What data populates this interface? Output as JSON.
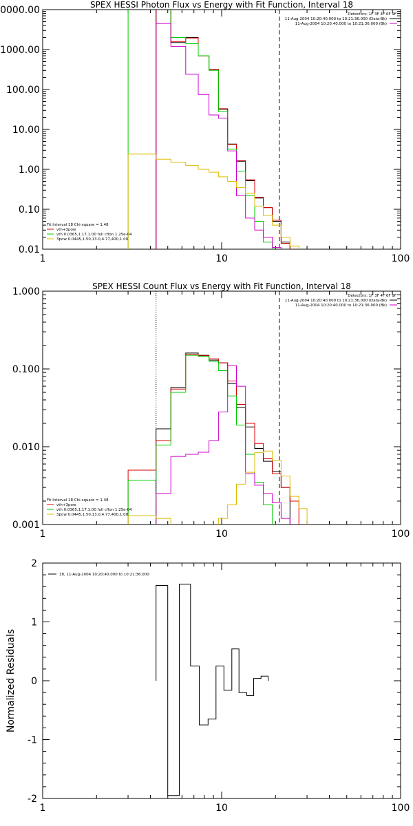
{
  "chart_data": [
    {
      "type": "line",
      "title": "SPEX HESSI Photon Flux vs Energy with Fit Function, Interval 18",
      "xlabel": "",
      "ylabel": "",
      "xscale": "log",
      "yscale": "log",
      "xlim": [
        1,
        100
      ],
      "ylim": [
        0.01,
        10000
      ],
      "xticks": [
        "1",
        "10",
        "100"
      ],
      "yticks": [
        "0.01",
        "0.10",
        "1.00",
        "10.00",
        "100.00",
        "1000.00",
        "10000.00"
      ],
      "detectors_label": "Detectors: 1F 3F 4F 6F 9F",
      "time_labels": [
        {
          "text": "11-Aug-2004 10:20:40.000 to 10:21:36.000 (Data-Bk)",
          "color": "#000000"
        },
        {
          "text": "11-Aug-2004 10:20:40.000 to 10:21:36.000 (Bk)",
          "color": "#cc00cc"
        }
      ],
      "legend_lines": [
        {
          "text": "Fit Interval 18   Chi-square = 1.48",
          "color": "#000000"
        },
        {
          "text": "vth+3pow",
          "color": "#dd0000"
        },
        {
          "text": "vth 0.0365,1.17,1.00  full cflon 1.25e-04",
          "color": "#00cc00"
        },
        {
          "text": "3pow 0.0445,1.50,13.0,4.77,400,1.00",
          "color": "#ddbb00"
        }
      ],
      "vlines": [
        {
          "x": 4.3,
          "style": "solid",
          "color": "#cc00cc"
        },
        {
          "x": 21,
          "style": "dashed",
          "color": "#000000"
        }
      ],
      "edges": [
        3,
        4.3,
        5.2,
        6.3,
        7.4,
        8.5,
        9.6,
        10.8,
        12.1,
        13.6,
        15.3,
        17.1,
        19.2,
        21.5,
        24.1,
        27.0,
        30.0
      ],
      "series": [
        {
          "name": "Data-Bk",
          "color": "#000000",
          "values": [
            null,
            10000,
            1500,
            2000,
            700,
            320,
            32,
            4.3,
            1.6,
            0.52,
            0.19,
            0.11,
            0.05,
            0.015,
            null,
            null
          ]
        },
        {
          "name": "vth+3pow",
          "color": "#dd0000",
          "values": [
            null,
            10000,
            1600,
            1950,
            690,
            320,
            33,
            4.2,
            1.65,
            0.55,
            0.2,
            0.11,
            0.053,
            0.014,
            null,
            null
          ]
        },
        {
          "name": "vth",
          "color": "#00cc00",
          "values": [
            10000,
            10000,
            2000,
            1400,
            700,
            300,
            28,
            3.2,
            0.9,
            0.22,
            0.05,
            0.015,
            null,
            null,
            null,
            null
          ]
        },
        {
          "name": "Bk",
          "color": "#cc00cc",
          "values": [
            null,
            4500,
            1200,
            240,
            75,
            23,
            19,
            2.9,
            0.22,
            0.06,
            0.03,
            0.02,
            0.011,
            null,
            null,
            null
          ]
        },
        {
          "name": "3pow",
          "color": "#ddbb00",
          "values": [
            2.4,
            1.8,
            1.5,
            1.25,
            1.0,
            0.85,
            0.65,
            0.5,
            0.35,
            0.25,
            0.12,
            0.07,
            0.04,
            0.02,
            0.012,
            null
          ]
        }
      ]
    },
    {
      "type": "line",
      "title": "SPEX HESSI Count Flux vs Energy with Fit Function, Interval 18",
      "xlabel": "",
      "ylabel": "",
      "xscale": "log",
      "yscale": "log",
      "xlim": [
        1,
        100
      ],
      "ylim": [
        0.001,
        1.0
      ],
      "xticks": [
        "1",
        "10",
        "100"
      ],
      "yticks": [
        "0.001",
        "0.010",
        "0.100",
        "1.000"
      ],
      "detectors_label": "Detectors: 1F 3F 4F 6F 9F",
      "time_labels": [
        {
          "text": "11-Aug-2004 10:20:40.000 to 10:21:36.000 (Data-Bk)",
          "color": "#000000"
        },
        {
          "text": "11-Aug-2004 10:20:40.000 to 10:21:36.000 (Bk)",
          "color": "#cc00cc"
        }
      ],
      "legend_lines": [
        {
          "text": "Fit Interval 18   Chi-square = 1.48",
          "color": "#000000"
        },
        {
          "text": "vth+3pow",
          "color": "#dd0000"
        },
        {
          "text": "vth 0.0365,1.17,1.00  full cflon 1.25e-04",
          "color": "#00cc00"
        },
        {
          "text": "3pow 0.0445,1.50,13.0,4.77,400,1.00",
          "color": "#ddbb00"
        }
      ],
      "vlines": [
        {
          "x": 4.3,
          "style": "dotted",
          "color": "#000000"
        },
        {
          "x": 21,
          "style": "dashed",
          "color": "#000000"
        }
      ],
      "edges": [
        3,
        4.3,
        5.2,
        6.3,
        7.4,
        8.5,
        9.6,
        10.8,
        12.1,
        13.6,
        15.3,
        17.1,
        19.2,
        21.5,
        24.1,
        27.0,
        30.0
      ],
      "series": [
        {
          "name": "Data-Bk",
          "color": "#000000",
          "values": [
            null,
            0.017,
            0.058,
            0.16,
            0.15,
            0.13,
            0.12,
            0.065,
            0.032,
            0.018,
            0.0095,
            0.0065,
            0.0048,
            0.003,
            null,
            null
          ]
        },
        {
          "name": "vth+3pow",
          "color": "#dd0000",
          "values": [
            0.005,
            0.012,
            0.055,
            0.155,
            0.148,
            0.135,
            0.12,
            0.07,
            0.035,
            0.02,
            0.011,
            0.007,
            0.0045,
            0.003,
            0.002,
            null
          ]
        },
        {
          "name": "vth",
          "color": "#00cc00",
          "values": [
            0.0037,
            0.0105,
            0.05,
            0.15,
            0.145,
            0.125,
            0.095,
            0.045,
            0.019,
            0.008,
            0.0035,
            0.0018,
            0.001,
            null,
            null,
            null
          ]
        },
        {
          "name": "Bk",
          "color": "#cc00cc",
          "values": [
            null,
            0.0025,
            0.0075,
            0.008,
            0.0085,
            0.012,
            0.028,
            0.11,
            0.06,
            0.0045,
            0.0032,
            0.0025,
            0.0019,
            0.0012,
            null,
            null
          ]
        },
        {
          "name": "3pow",
          "color": "#ddbb00",
          "values": [
            0.0013,
            0.0012,
            null,
            null,
            null,
            null,
            0.0012,
            0.0018,
            0.0033,
            0.0047,
            0.0084,
            0.0088,
            0.0067,
            0.0042,
            0.0023,
            0.0016
          ]
        }
      ]
    },
    {
      "type": "line",
      "title": "",
      "xlabel": "",
      "ylabel": "Normalized Residuals",
      "xscale": "log",
      "yscale": "linear",
      "xlim": [
        1,
        100
      ],
      "ylim": [
        -2,
        2
      ],
      "xticks": [
        "1",
        "10",
        "100"
      ],
      "yticks": [
        "2",
        "1",
        "0",
        "-1",
        "-2"
      ],
      "legend_lines": [
        {
          "text": "18, 11-Aug-2004 10:20:40.000 to 10:21:36.000",
          "color": "#000000"
        }
      ],
      "edges": [
        4.3,
        5.0,
        5.8,
        6.7,
        7.5,
        8.4,
        9.3,
        10.3,
        11.4,
        12.5,
        13.8,
        15.1,
        16.6,
        18.2,
        20.0
      ],
      "series": [
        {
          "name": "18, 11-Aug-2004 10:20:40.000 to 10:21:36.000",
          "color": "#000000",
          "values": [
            1.62,
            -1.95,
            1.64,
            0.25,
            -0.75,
            -0.65,
            0.25,
            -0.16,
            0.54,
            -0.2,
            -0.25,
            0.04,
            0.08,
            null
          ]
        }
      ]
    }
  ]
}
